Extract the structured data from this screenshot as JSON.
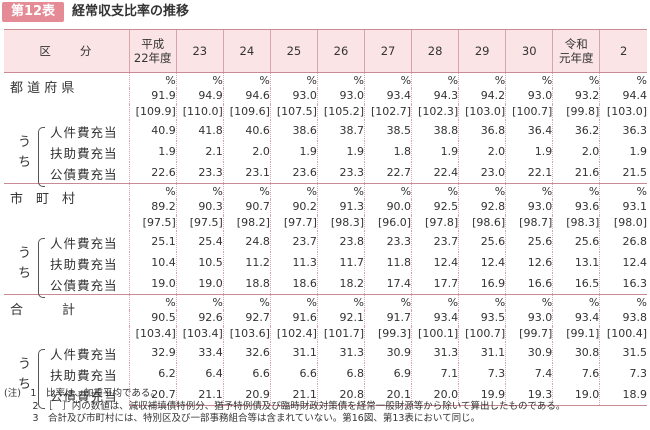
{
  "title": {
    "tag": "第12表",
    "text": "経常収支比率の推移"
  },
  "table": {
    "corner": "区　　分",
    "columns": [
      [
        "平成",
        "22年度"
      ],
      [
        "23"
      ],
      [
        "24"
      ],
      [
        "25"
      ],
      [
        "26"
      ],
      [
        "27"
      ],
      [
        "28"
      ],
      [
        "29"
      ],
      [
        "30"
      ],
      [
        "令和",
        "元年度"
      ],
      [
        "2"
      ]
    ],
    "unit": "%",
    "groups": [
      {
        "label": "都 道 府 県",
        "main": [
          "91.9",
          "94.9",
          "94.6",
          "93.0",
          "93.0",
          "93.4",
          "94.3",
          "94.2",
          "93.0",
          "93.2",
          "94.4"
        ],
        "bracket": [
          "[109.9]",
          "[110.0]",
          "[109.6]",
          "[107.5]",
          "[105.2]",
          "[102.7]",
          "[102.3]",
          "[103.0]",
          "[100.7]",
          "[99.8]",
          "[103.0]"
        ],
        "uchi": "う\nち",
        "subs": [
          {
            "label": "人件費充当",
            "values": [
              "40.9",
              "41.8",
              "40.6",
              "38.6",
              "38.7",
              "38.5",
              "38.8",
              "36.8",
              "36.4",
              "36.2",
              "36.3"
            ]
          },
          {
            "label": "扶助費充当",
            "values": [
              "1.9",
              "2.1",
              "2.0",
              "1.9",
              "1.9",
              "1.8",
              "1.9",
              "2.0",
              "1.9",
              "2.0",
              "1.9"
            ]
          },
          {
            "label": "公債費充当",
            "values": [
              "22.6",
              "23.3",
              "23.1",
              "23.6",
              "23.3",
              "22.7",
              "22.4",
              "23.0",
              "22.1",
              "21.6",
              "21.5"
            ]
          }
        ]
      },
      {
        "label": "市　町　村",
        "main": [
          "89.2",
          "90.3",
          "90.7",
          "90.2",
          "91.3",
          "90.0",
          "92.5",
          "92.8",
          "93.0",
          "93.6",
          "93.1"
        ],
        "bracket": [
          "[97.5]",
          "[97.5]",
          "[98.2]",
          "[97.7]",
          "[98.3]",
          "[96.0]",
          "[97.8]",
          "[98.6]",
          "[98.7]",
          "[98.3]",
          "[98.0]"
        ],
        "uchi": "う\nち",
        "subs": [
          {
            "label": "人件費充当",
            "values": [
              "25.1",
              "25.4",
              "24.8",
              "23.7",
              "23.8",
              "23.3",
              "23.7",
              "25.6",
              "25.6",
              "25.6",
              "26.8"
            ]
          },
          {
            "label": "扶助費充当",
            "values": [
              "10.4",
              "10.5",
              "11.2",
              "11.3",
              "11.7",
              "11.8",
              "12.4",
              "12.4",
              "12.6",
              "13.1",
              "12.4"
            ]
          },
          {
            "label": "公債費充当",
            "values": [
              "19.0",
              "19.0",
              "18.8",
              "18.6",
              "18.2",
              "17.4",
              "17.7",
              "16.9",
              "16.6",
              "16.5",
              "16.3"
            ]
          }
        ]
      },
      {
        "label": "合　　　計",
        "main": [
          "90.5",
          "92.6",
          "92.7",
          "91.6",
          "92.1",
          "91.7",
          "93.4",
          "93.5",
          "93.0",
          "93.4",
          "93.8"
        ],
        "bracket": [
          "[103.4]",
          "[103.4]",
          "[103.6]",
          "[102.4]",
          "[101.7]",
          "[99.3]",
          "[100.1]",
          "[100.7]",
          "[99.7]",
          "[99.1]",
          "[100.4]"
        ],
        "uchi": "う\nち",
        "subs": [
          {
            "label": "人件費充当",
            "values": [
              "32.9",
              "33.4",
              "32.6",
              "31.1",
              "31.3",
              "30.9",
              "31.3",
              "31.1",
              "30.9",
              "30.8",
              "31.5"
            ]
          },
          {
            "label": "扶助費充当",
            "values": [
              "6.2",
              "6.4",
              "6.6",
              "6.6",
              "6.8",
              "6.9",
              "7.1",
              "7.3",
              "7.4",
              "7.6",
              "7.3"
            ]
          },
          {
            "label": "公債費充当",
            "values": [
              "20.7",
              "21.1",
              "20.9",
              "21.1",
              "20.8",
              "20.1",
              "20.0",
              "19.9",
              "19.3",
              "19.0",
              "18.9"
            ]
          }
        ]
      }
    ]
  },
  "notes": [
    "(注)　1　比率は、加重平均である。",
    "　　　2　［　］内の数値は、減収補填債特例分、猶予特例債及び臨時財政対策債を経常一般財源等から除いて算出したものである。",
    "　　　3　合計及び市町村には、特別区及び一部事務組合等は含まれていない。第16図、第13表において同じ。"
  ]
}
